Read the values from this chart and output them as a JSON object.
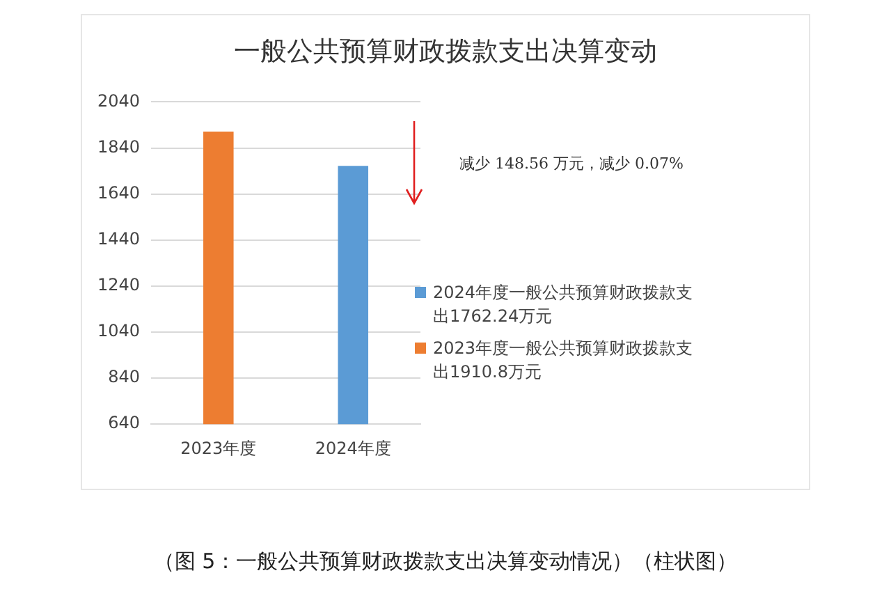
{
  "chart_data": {
    "type": "bar",
    "title": "一般公共预算财政拨款支出决算变动",
    "categories": [
      "2023年度",
      "2024年度"
    ],
    "series": [
      {
        "name": "2024年度一般公共预算财政拨款支出1762.24万元",
        "color": "#5b9bd5",
        "values": [
          null,
          1762.24
        ]
      },
      {
        "name": "2023年度一般公共预算财政拨款支出1910.8万元",
        "color": "#ed7d31",
        "values": [
          1910.8,
          null
        ]
      }
    ],
    "ylim": [
      640,
      2040
    ],
    "yticks": [
      640,
      840,
      1040,
      1240,
      1440,
      1640,
      1840,
      2040
    ],
    "grid": "y",
    "legend": "right",
    "annotations": [
      "减少 148.56 万元，减少 0.07%",
      "（图 5：一般公共预算财政拨款支出决算变动情况）（柱状图）"
    ]
  }
}
